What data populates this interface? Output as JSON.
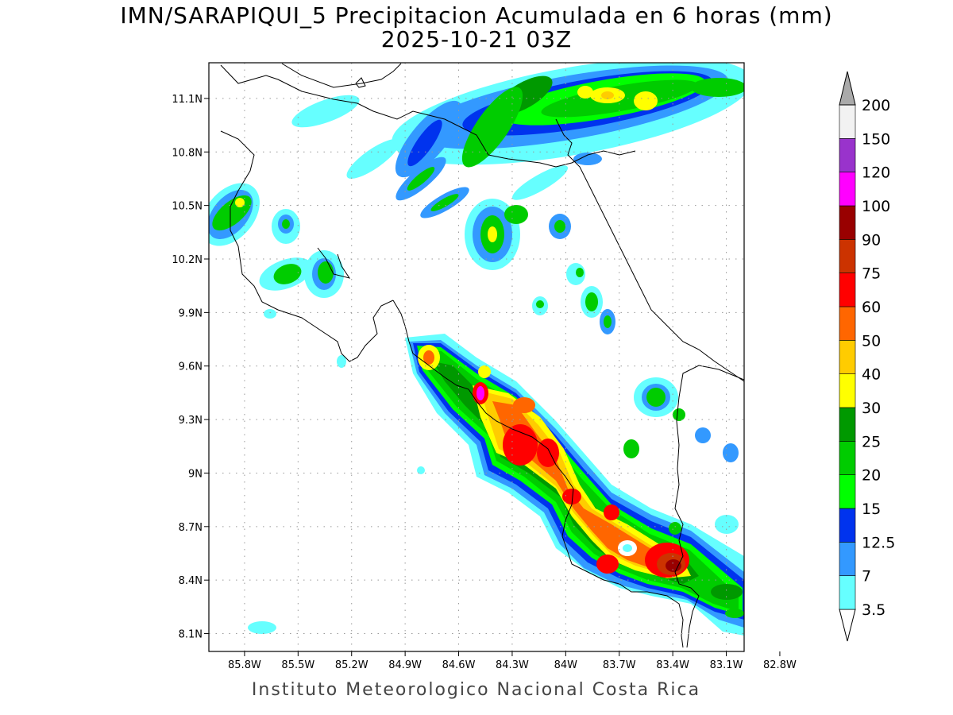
{
  "title": {
    "line1": "IMN/SARAPIQUI_5 Precipitacion Acumulada en 6 horas (mm)",
    "line2": "2025-10-21 03Z"
  },
  "footer": "Instituto Meteorologico Nacional Costa Rica",
  "map": {
    "lon_range": [
      -86.0,
      -83.0
    ],
    "lat_range": [
      8.0,
      11.3
    ],
    "x_ticks": [
      {
        "value": -85.8,
        "label": "85.8W"
      },
      {
        "value": -85.5,
        "label": "85.5W"
      },
      {
        "value": -85.2,
        "label": "85.2W"
      },
      {
        "value": -84.9,
        "label": "84.9W"
      },
      {
        "value": -84.6,
        "label": "84.6W"
      },
      {
        "value": -84.3,
        "label": "84.3W"
      },
      {
        "value": -84.0,
        "label": "84W"
      },
      {
        "value": -83.7,
        "label": "83.7W"
      },
      {
        "value": -83.4,
        "label": "83.4W"
      },
      {
        "value": -83.1,
        "label": "83.1W"
      },
      {
        "value": -82.8,
        "label": "82.8W"
      }
    ],
    "y_ticks": [
      {
        "value": 11.1,
        "label": "11.1N"
      },
      {
        "value": 10.8,
        "label": "10.8N"
      },
      {
        "value": 10.5,
        "label": "10.5N"
      },
      {
        "value": 10.2,
        "label": "10.2N"
      },
      {
        "value": 9.9,
        "label": "9.9N"
      },
      {
        "value": 9.6,
        "label": "9.6N"
      },
      {
        "value": 9.3,
        "label": "9.3N"
      },
      {
        "value": 9.0,
        "label": "9N"
      },
      {
        "value": 8.7,
        "label": "8.7N"
      },
      {
        "value": 8.4,
        "label": "8.4N"
      },
      {
        "value": 8.1,
        "label": "8.1N"
      }
    ]
  },
  "colorbar": {
    "levels": [
      {
        "label": "3.5",
        "color": "#66ffff"
      },
      {
        "label": "7",
        "color": "#3399ff"
      },
      {
        "label": "12.5",
        "color": "#0033ee"
      },
      {
        "label": "15",
        "color": "#00ff00"
      },
      {
        "label": "20",
        "color": "#00cc00"
      },
      {
        "label": "25",
        "color": "#009900"
      },
      {
        "label": "30",
        "color": "#ffff00"
      },
      {
        "label": "40",
        "color": "#ffcc00"
      },
      {
        "label": "50",
        "color": "#ff6600"
      },
      {
        "label": "60",
        "color": "#ff0000"
      },
      {
        "label": "75",
        "color": "#cc3300"
      },
      {
        "label": "90",
        "color": "#990000"
      },
      {
        "label": "100",
        "color": "#ff00ff"
      },
      {
        "label": "120",
        "color": "#9933cc"
      },
      {
        "label": "150",
        "color": "#f2f2f2"
      },
      {
        "label": "200",
        "color": "#aaaaaa"
      }
    ]
  }
}
